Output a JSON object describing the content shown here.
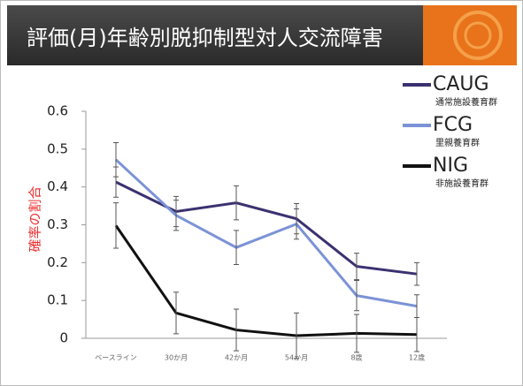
{
  "chart_data": {
    "type": "line",
    "title": "評価(月)年齢別脱抑制型対人交流障害",
    "y_label": "確率の割合",
    "categories": [
      "ベースライン",
      "30か月",
      "42か月",
      "54か月",
      "8歳",
      "12歳"
    ],
    "ylim": [
      0,
      0.6
    ],
    "yticks": [
      0,
      0.1,
      0.2,
      0.3,
      0.4,
      0.5,
      0.6
    ],
    "legend": "top-right",
    "series": [
      {
        "name": "CAUG",
        "subtitle": "通常施設養育群",
        "color": "#3b3170",
        "values": [
          0.413,
          0.335,
          0.358,
          0.316,
          0.19,
          0.17
        ],
        "errors": [
          0.04,
          0.04,
          0.045,
          0.04,
          0.035,
          0.03
        ]
      },
      {
        "name": "FCG",
        "subtitle": "里親養育群",
        "color": "#7b92d6",
        "values": [
          0.472,
          0.325,
          0.24,
          0.302,
          0.113,
          0.085
        ],
        "errors": [
          0.045,
          0.04,
          0.045,
          0.04,
          0.04,
          0.03
        ]
      },
      {
        "name": "NIG",
        "subtitle": "非施設養育群",
        "color": "#111111",
        "values": [
          0.298,
          0.067,
          0.022,
          0.007,
          0.013,
          0.01
        ],
        "errors": [
          0.06,
          0.055,
          0.055,
          0.06,
          0.05,
          0.045
        ]
      }
    ]
  }
}
